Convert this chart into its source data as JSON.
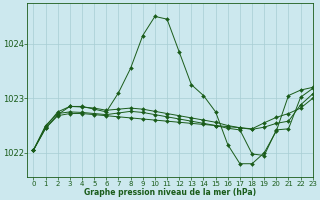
{
  "title": "Graphe pression niveau de la mer (hPa)",
  "bg_color": "#cce8ee",
  "line_color": "#1a5c1a",
  "grid_color": "#a8cdd4",
  "xlim": [
    -0.5,
    23
  ],
  "ylim": [
    1021.55,
    1024.75
  ],
  "yticks": [
    1022,
    1023,
    1024
  ],
  "xticks": [
    0,
    1,
    2,
    3,
    4,
    5,
    6,
    7,
    8,
    9,
    10,
    11,
    12,
    13,
    14,
    15,
    16,
    17,
    18,
    19,
    20,
    21,
    22,
    23
  ],
  "series": [
    [
      1022.05,
      1022.45,
      1022.7,
      1022.85,
      1022.85,
      1022.8,
      1022.75,
      1023.1,
      1023.55,
      1024.15,
      1024.5,
      1024.45,
      1023.85,
      1023.25,
      1023.05,
      1022.75,
      1022.15,
      1021.8,
      1021.8,
      1022.0,
      1022.4,
      1023.05,
      1023.15,
      1023.2
    ],
    [
      1022.05,
      1022.45,
      1022.68,
      1022.72,
      1022.72,
      1022.7,
      1022.68,
      1022.66,
      1022.64,
      1022.62,
      1022.6,
      1022.58,
      1022.56,
      1022.54,
      1022.52,
      1022.5,
      1022.48,
      1022.46,
      1022.44,
      1022.55,
      1022.65,
      1022.72,
      1022.82,
      1023.0
    ],
    [
      1022.05,
      1022.5,
      1022.72,
      1022.75,
      1022.74,
      1022.72,
      1022.7,
      1022.73,
      1022.76,
      1022.74,
      1022.7,
      1022.66,
      1022.62,
      1022.58,
      1022.54,
      1022.5,
      1022.45,
      1022.42,
      1021.98,
      1021.95,
      1022.42,
      1022.44,
      1023.02,
      1023.18
    ],
    [
      1022.05,
      1022.48,
      1022.75,
      1022.85,
      1022.84,
      1022.82,
      1022.78,
      1022.8,
      1022.82,
      1022.8,
      1022.76,
      1022.72,
      1022.68,
      1022.64,
      1022.6,
      1022.56,
      1022.5,
      1022.46,
      1022.43,
      1022.47,
      1022.54,
      1022.58,
      1022.88,
      1023.08
    ]
  ]
}
